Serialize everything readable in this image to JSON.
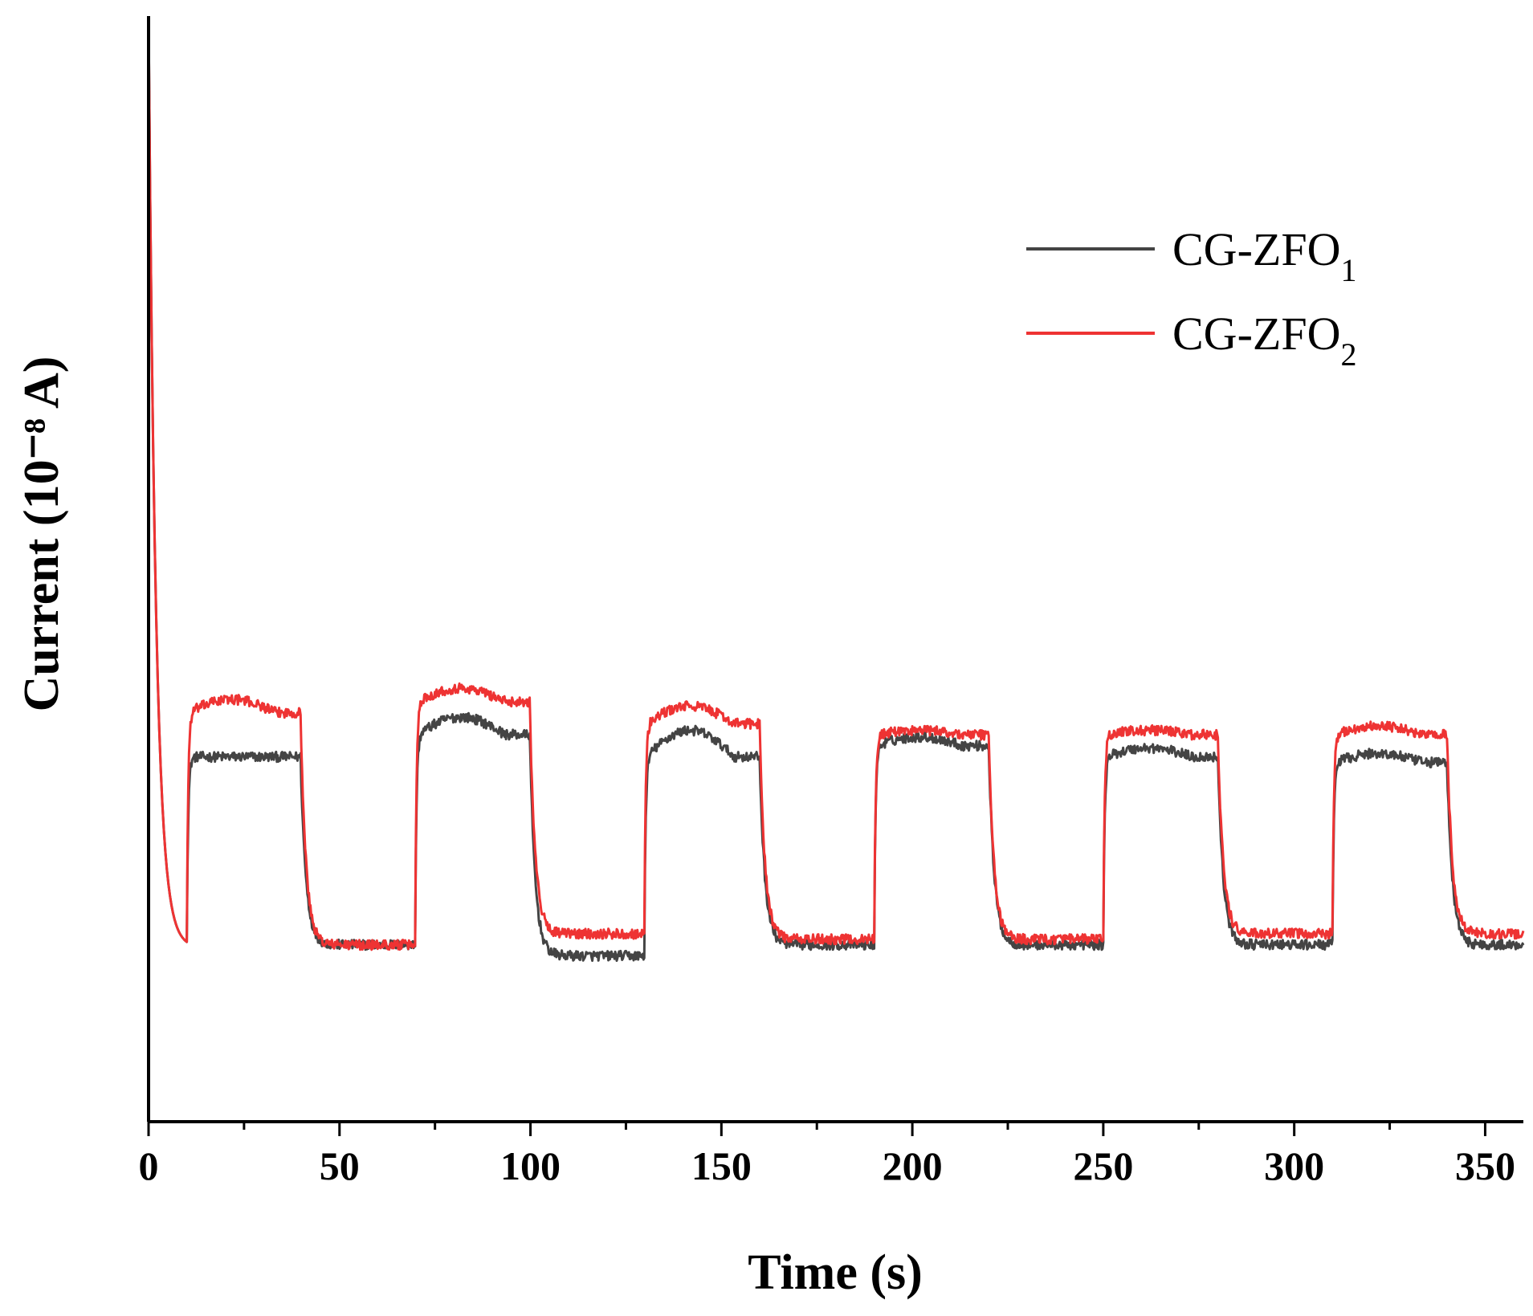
{
  "chart_data": {
    "type": "line",
    "title": "",
    "xlabel": "Time (s)",
    "ylabel": "Current (10⁻⁸ A)",
    "xlim": [
      0,
      360
    ],
    "ylim": [
      0,
      10
    ],
    "x_ticks": [
      0,
      50,
      100,
      150,
      200,
      250,
      300,
      350
    ],
    "x_tick_labels": [
      "0",
      "50",
      "100",
      "150",
      "200",
      "250",
      "300",
      "350"
    ],
    "legend": {
      "position": "top-right",
      "entries": [
        {
          "base": "CG-ZFO",
          "sub": "1"
        },
        {
          "base": "CG-ZFO",
          "sub": "2"
        }
      ]
    },
    "light_on_intervals": [
      [
        10,
        40
      ],
      [
        70,
        100
      ],
      [
        130,
        160
      ],
      [
        190,
        220
      ],
      [
        250,
        280
      ],
      [
        310,
        340
      ]
    ],
    "series": [
      {
        "name": "CG-ZFO1",
        "color": "#444444",
        "initial_peak": 10.0,
        "first_dark_min": 1.6,
        "on_levels": [
          3.3,
          3.5,
          3.3,
          3.4,
          3.3,
          3.25
        ],
        "on_peaks": [
          3.3,
          3.7,
          3.6,
          3.5,
          3.4,
          3.35
        ],
        "off_levels": [
          1.6,
          1.5,
          1.6,
          1.6,
          1.6,
          1.6
        ]
      },
      {
        "name": "CG-ZFO2",
        "color": "#ee3333",
        "initial_peak": 10.0,
        "first_dark_min": 1.6,
        "on_levels": [
          3.7,
          3.8,
          3.6,
          3.5,
          3.5,
          3.5
        ],
        "on_peaks": [
          3.85,
          3.95,
          3.8,
          3.55,
          3.55,
          3.6
        ],
        "off_levels": [
          1.6,
          1.7,
          1.65,
          1.65,
          1.7,
          1.7
        ]
      }
    ]
  }
}
